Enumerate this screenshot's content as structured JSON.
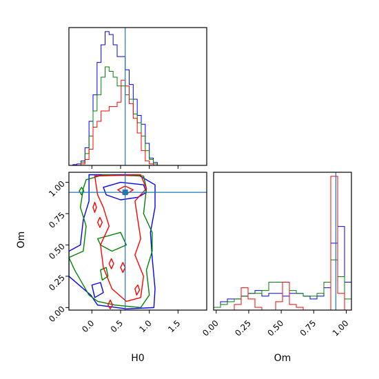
{
  "chart_data": {
    "type": "corner",
    "parameters": [
      "H0",
      "Om"
    ],
    "truths": {
      "H0": 0.58,
      "Om": 0.92
    },
    "colors": {
      "blue": "#0000ff",
      "green": "#008000",
      "red": "#ff0000",
      "truth": "#1f77b4"
    },
    "panels": [
      {
        "id": "hist-h0",
        "type": "histogram",
        "xlim": [
          -0.4,
          2.0
        ],
        "xticks": [
          0.0,
          0.5,
          1.0,
          1.5
        ],
        "show_tick_labels": false,
        "bin_edges": [
          -0.4,
          -0.33,
          -0.26,
          -0.19,
          -0.12,
          -0.05,
          0.02,
          0.09,
          0.16,
          0.23,
          0.3,
          0.37,
          0.44,
          0.51,
          0.58,
          0.65,
          0.72,
          0.79,
          0.86,
          0.93,
          1.0,
          1.07,
          1.14,
          1.21,
          1.28,
          1.35,
          1.42
        ],
        "series": [
          {
            "color": "#0000ff",
            "counts": [
              0,
              0.5,
              1,
              3,
              12,
              30,
              48,
              70,
              82,
              91,
              89,
              82,
              74,
              74,
              65,
              55,
              45,
              34,
              28,
              15,
              5,
              2,
              0,
              0,
              0,
              0
            ]
          },
          {
            "color": "#008000",
            "counts": [
              0,
              0,
              0,
              2,
              8,
              20,
              37,
              48,
              60,
              67,
              64,
              60,
              54,
              54,
              48,
              45,
              35,
              29,
              20,
              10,
              4,
              1,
              0,
              0,
              0,
              0
            ]
          },
          {
            "color": "#ff0000",
            "counts": [
              0,
              0,
              0,
              1,
              4,
              11,
              26,
              30,
              37,
              37,
              40,
              40,
              43,
              58,
              54,
              42,
              32,
              22,
              10,
              3,
              1,
              0,
              0,
              0,
              0,
              0
            ]
          }
        ]
      },
      {
        "id": "contour-h0-om",
        "type": "contour",
        "xlabel": "H0",
        "ylabel": "Om",
        "xlim": [
          -0.4,
          2.0
        ],
        "ylim": [
          -0.02,
          1.08
        ],
        "xticks": [
          0.0,
          0.5,
          1.0,
          1.5
        ],
        "xtick_labels": [
          "0.0",
          "0.5",
          "1.0",
          "1.5"
        ],
        "yticks": [
          0.0,
          0.25,
          0.5,
          0.75,
          1.0
        ],
        "ytick_labels": [
          "0.00",
          "0.25",
          "0.50",
          "0.75",
          "1.00"
        ],
        "contours": [
          {
            "color": "#0000ff",
            "points": [
              [
                -0.05,
                1.06
              ],
              [
                0.8,
                1.06
              ],
              [
                1.1,
                0.98
              ],
              [
                1.1,
                0.8
              ],
              [
                1.02,
                0.6
              ],
              [
                1.05,
                0.4
              ],
              [
                1.1,
                0.15
              ],
              [
                1.08,
                0.0
              ],
              [
                0.6,
                -0.01
              ],
              [
                0.1,
                0.02
              ],
              [
                -0.02,
                0.1
              ],
              [
                -0.4,
                0.25
              ],
              [
                -0.4,
                0.45
              ],
              [
                -0.2,
                0.5
              ],
              [
                -0.15,
                0.7
              ],
              [
                -0.05,
                0.85
              ],
              [
                -0.05,
                1.0
              ]
            ]
          },
          {
            "color": "#0000ff",
            "points": [
              [
                0.2,
                0.96
              ],
              [
                0.5,
                1.0
              ],
              [
                0.9,
                0.98
              ],
              [
                0.95,
                0.92
              ],
              [
                0.8,
                0.88
              ],
              [
                0.5,
                0.86
              ],
              [
                0.25,
                0.9
              ]
            ]
          },
          {
            "color": "#0000ff",
            "points": [
              [
                0.0,
                0.18
              ],
              [
                0.15,
                0.2
              ],
              [
                0.2,
                0.12
              ],
              [
                0.05,
                0.08
              ]
            ]
          },
          {
            "color": "#008000",
            "points": [
              [
                -0.1,
                1.02
              ],
              [
                0.2,
                1.06
              ],
              [
                0.9,
                1.05
              ],
              [
                0.95,
                0.95
              ],
              [
                0.9,
                0.75
              ],
              [
                1.05,
                0.6
              ],
              [
                1.05,
                0.45
              ],
              [
                0.95,
                0.3
              ],
              [
                1.0,
                0.1
              ],
              [
                0.85,
                0.0
              ],
              [
                0.4,
                0.02
              ],
              [
                0.1,
                0.05
              ],
              [
                -0.05,
                0.1
              ],
              [
                -0.3,
                0.3
              ],
              [
                -0.4,
                0.4
              ],
              [
                -0.15,
                0.45
              ],
              [
                -0.1,
                0.65
              ],
              [
                -0.2,
                0.8
              ],
              [
                -0.15,
                0.95
              ]
            ]
          },
          {
            "color": "#008000",
            "points": [
              [
                -0.22,
                0.93
              ],
              [
                -0.18,
                0.96
              ],
              [
                -0.14,
                0.93
              ],
              [
                -0.18,
                0.9
              ]
            ]
          },
          {
            "color": "#008000",
            "points": [
              [
                0.1,
                0.55
              ],
              [
                0.5,
                0.6
              ],
              [
                0.6,
                0.5
              ],
              [
                0.35,
                0.45
              ],
              [
                0.15,
                0.5
              ]
            ]
          },
          {
            "color": "#008000",
            "points": [
              [
                0.15,
                0.3
              ],
              [
                0.25,
                0.32
              ],
              [
                0.28,
                0.25
              ],
              [
                0.18,
                0.22
              ]
            ]
          },
          {
            "color": "#ff0000",
            "points": [
              [
                0.05,
                1.05
              ],
              [
                0.85,
                1.06
              ],
              [
                0.95,
                0.95
              ],
              [
                0.75,
                0.85
              ],
              [
                0.8,
                0.7
              ],
              [
                0.85,
                0.55
              ],
              [
                0.75,
                0.42
              ],
              [
                0.9,
                0.25
              ],
              [
                0.85,
                0.08
              ],
              [
                0.6,
                0.05
              ],
              [
                0.35,
                0.15
              ],
              [
                0.2,
                0.32
              ],
              [
                0.15,
                0.5
              ],
              [
                0.3,
                0.65
              ],
              [
                0.2,
                0.8
              ],
              [
                0.1,
                0.9
              ]
            ]
          },
          {
            "color": "#ff0000",
            "points": [
              [
                0.45,
                0.94
              ],
              [
                0.58,
                0.97
              ],
              [
                0.72,
                0.94
              ],
              [
                0.58,
                0.9
              ]
            ]
          },
          {
            "color": "#ff0000",
            "points": [
              [
                0.02,
                0.8
              ],
              [
                0.05,
                0.84
              ],
              [
                0.08,
                0.8
              ],
              [
                0.05,
                0.76
              ]
            ]
          },
          {
            "color": "#ff0000",
            "points": [
              [
                0.1,
                0.68
              ],
              [
                0.14,
                0.72
              ],
              [
                0.18,
                0.68
              ],
              [
                0.14,
                0.64
              ]
            ]
          },
          {
            "color": "#ff0000",
            "points": [
              [
                0.3,
                0.35
              ],
              [
                0.34,
                0.39
              ],
              [
                0.38,
                0.35
              ],
              [
                0.34,
                0.31
              ]
            ]
          },
          {
            "color": "#ff0000",
            "points": [
              [
                0.5,
                0.32
              ],
              [
                0.54,
                0.36
              ],
              [
                0.58,
                0.32
              ],
              [
                0.54,
                0.28
              ]
            ]
          },
          {
            "color": "#ff0000",
            "points": [
              [
                0.75,
                0.15
              ],
              [
                0.8,
                0.18
              ],
              [
                0.83,
                0.14
              ],
              [
                0.78,
                0.1
              ]
            ]
          },
          {
            "color": "#ff0000",
            "points": [
              [
                0.28,
                0.02
              ],
              [
                0.32,
                0.06
              ],
              [
                0.36,
                0.02
              ],
              [
                0.32,
                -0.01
              ]
            ]
          }
        ]
      },
      {
        "id": "hist-om",
        "type": "histogram",
        "xlabel": "Om",
        "xlim": [
          -0.02,
          1.04
        ],
        "xticks": [
          0.0,
          0.25,
          0.5,
          0.75,
          1.0
        ],
        "xtick_labels": [
          "0.00",
          "0.25",
          "0.50",
          "0.75",
          "1.00"
        ],
        "bin_edges": [
          -0.02,
          0.033,
          0.086,
          0.139,
          0.192,
          0.245,
          0.298,
          0.351,
          0.404,
          0.457,
          0.51,
          0.563,
          0.616,
          0.669,
          0.722,
          0.775,
          0.828,
          0.881,
          0.934,
          0.987,
          1.04
        ],
        "series": [
          {
            "color": "#0000ff",
            "counts": [
              1,
              3,
              4,
              4,
              5,
              6,
              7,
              5,
              6,
              6,
              5,
              6,
              6,
              5,
              4,
              5,
              8,
              24,
              30,
              10
            ]
          },
          {
            "color": "#008000",
            "counts": [
              1,
              2,
              3,
              4,
              5,
              6,
              6,
              7,
              10,
              10,
              10,
              7,
              6,
              5,
              5,
              6,
              10,
              18,
              12,
              4
            ]
          },
          {
            "color": "#ff0000",
            "counts": [
              0,
              0,
              0,
              2,
              8,
              4,
              1,
              0,
              0,
              3,
              10,
              2,
              1,
              0,
              0,
              0,
              0,
              48,
              6,
              0
            ]
          }
        ]
      }
    ]
  }
}
